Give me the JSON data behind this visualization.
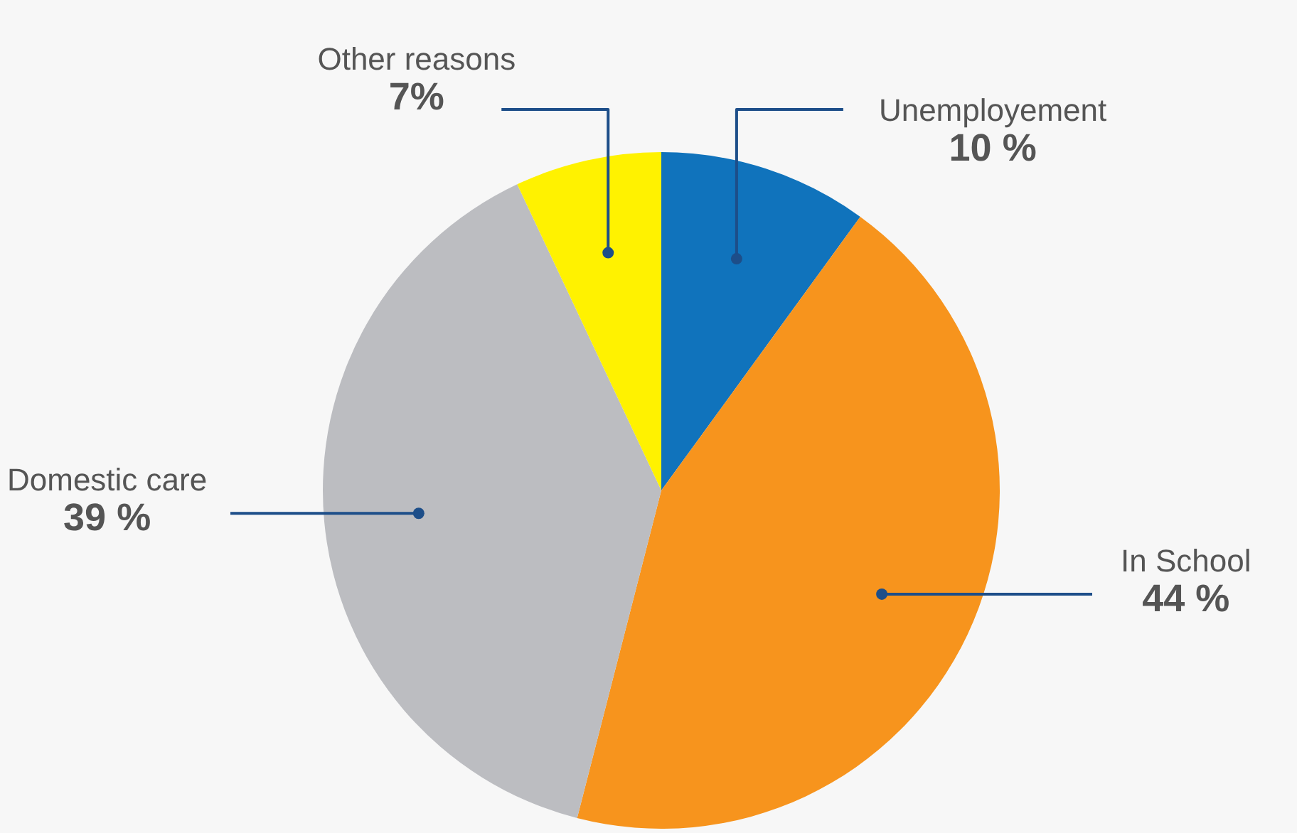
{
  "chart_data": {
    "type": "pie",
    "categories": [
      "Unemployement",
      "In School",
      "Domestic care",
      "Other reasons"
    ],
    "values": [
      10,
      44,
      39,
      7
    ],
    "colors": [
      "#1073bc",
      "#f7941d",
      "#bcbdc1",
      "#fff200"
    ],
    "value_labels": [
      "10 %",
      "44 %",
      "39 %",
      "7%"
    ]
  }
}
